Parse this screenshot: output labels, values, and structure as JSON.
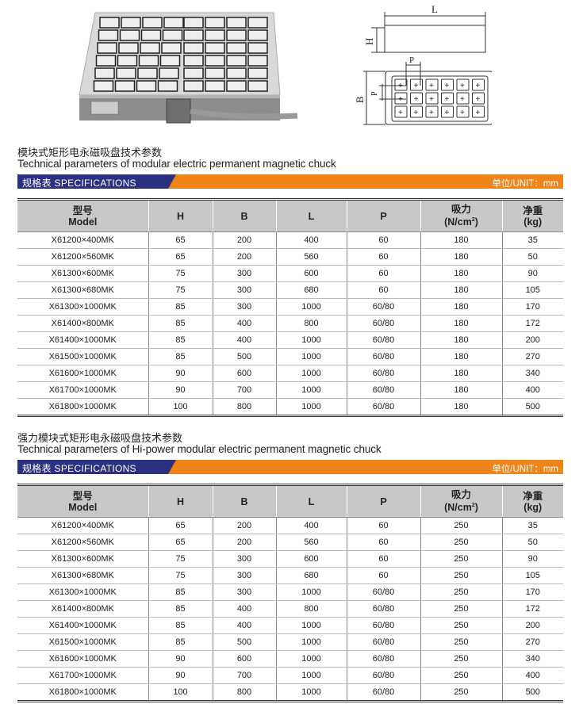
{
  "diagram": {
    "labels": {
      "L": "L",
      "H": "H",
      "P": "P",
      "B": "B"
    }
  },
  "columns": {
    "model_cn": "型号",
    "model_en": "Model",
    "H": "H",
    "B": "B",
    "L": "L",
    "P": "P",
    "force_cn": "吸力",
    "force_unit": "(N/cm",
    "force_sup": "2",
    "force_close": ")",
    "weight_cn": "净重",
    "weight_unit": "(kg)"
  },
  "sections": [
    {
      "title_cn": "模块式矩形电永磁吸盘技术参数",
      "title_en": "Technical parameters of modular electric permanent magnetic chuck",
      "bar_label": "规格表  SPECIFICATIONS",
      "unit_label": "单位/UNIT：mm",
      "rows": [
        [
          "X61200×400MK",
          "65",
          "200",
          "400",
          "60",
          "180",
          "35"
        ],
        [
          "X61200×560MK",
          "65",
          "200",
          "560",
          "60",
          "180",
          "50"
        ],
        [
          "X61300×600MK",
          "75",
          "300",
          "600",
          "60",
          "180",
          "90"
        ],
        [
          "X61300×680MK",
          "75",
          "300",
          "680",
          "60",
          "180",
          "105"
        ],
        [
          "X61300×1000MK",
          "85",
          "300",
          "1000",
          "60/80",
          "180",
          "170"
        ],
        [
          "X61400×800MK",
          "85",
          "400",
          "800",
          "60/80",
          "180",
          "172"
        ],
        [
          "X61400×1000MK",
          "85",
          "400",
          "1000",
          "60/80",
          "180",
          "200"
        ],
        [
          "X61500×1000MK",
          "85",
          "500",
          "1000",
          "60/80",
          "180",
          "270"
        ],
        [
          "X61600×1000MK",
          "90",
          "600",
          "1000",
          "60/80",
          "180",
          "340"
        ],
        [
          "X61700×1000MK",
          "90",
          "700",
          "1000",
          "60/80",
          "180",
          "400"
        ],
        [
          "X61800×1000MK",
          "100",
          "800",
          "1000",
          "60/80",
          "180",
          "500"
        ]
      ]
    },
    {
      "title_cn": "强力模块式矩形电永磁吸盘技术参数",
      "title_en": "Technical parameters of Hi-power modular electric permanent magnetic chuck",
      "bar_label": "规格表  SPECIFICATIONS",
      "unit_label": "单位/UNIT：mm",
      "rows": [
        [
          "X61200×400MK",
          "65",
          "200",
          "400",
          "60",
          "250",
          "35"
        ],
        [
          "X61200×560MK",
          "65",
          "200",
          "560",
          "60",
          "250",
          "50"
        ],
        [
          "X61300×600MK",
          "75",
          "300",
          "600",
          "60",
          "250",
          "90"
        ],
        [
          "X61300×680MK",
          "75",
          "300",
          "680",
          "60",
          "250",
          "105"
        ],
        [
          "X61300×1000MK",
          "85",
          "300",
          "1000",
          "60/80",
          "250",
          "170"
        ],
        [
          "X61400×800MK",
          "85",
          "400",
          "800",
          "60/80",
          "250",
          "172"
        ],
        [
          "X61400×1000MK",
          "85",
          "400",
          "1000",
          "60/80",
          "250",
          "200"
        ],
        [
          "X61500×1000MK",
          "85",
          "500",
          "1000",
          "60/80",
          "250",
          "270"
        ],
        [
          "X61600×1000MK",
          "90",
          "600",
          "1000",
          "60/80",
          "250",
          "340"
        ],
        [
          "X61700×1000MK",
          "90",
          "700",
          "1000",
          "60/80",
          "250",
          "400"
        ],
        [
          "X61800×1000MK",
          "100",
          "800",
          "1000",
          "60/80",
          "250",
          "500"
        ]
      ]
    }
  ],
  "colors": {
    "bar_orange": "#ef8419",
    "bar_blue": "#2b3180",
    "header_gray": "#c8c8ca"
  }
}
